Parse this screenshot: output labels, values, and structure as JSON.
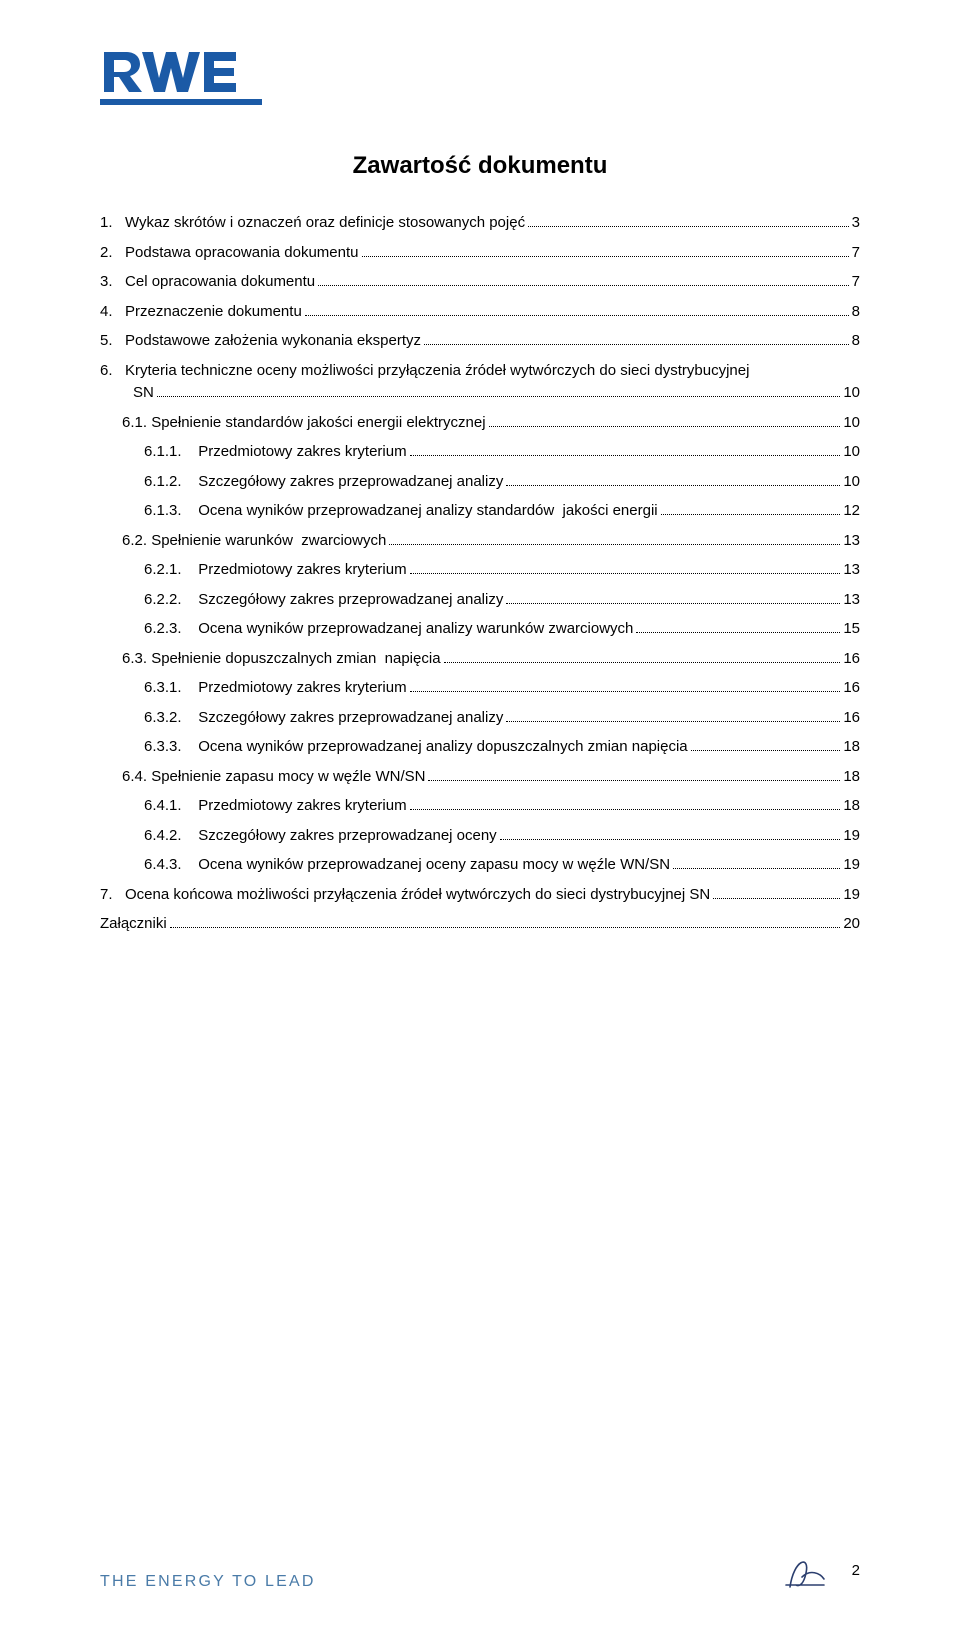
{
  "logo": {
    "brand": "RWE",
    "text_color": "#1b5aa6",
    "underline_color": "#1b5aa6"
  },
  "heading": "Zawartość dokumentu",
  "toc": [
    {
      "indent": 0,
      "num": "1.",
      "label": "Wykaz skrótów i oznaczeń oraz definicje stosowanych pojęć",
      "page": "3"
    },
    {
      "indent": 0,
      "num": "2.",
      "label": "Podstawa opracowania dokumentu",
      "page": "7"
    },
    {
      "indent": 0,
      "num": "3.",
      "label": "Cel opracowania dokumentu",
      "page": "7"
    },
    {
      "indent": 0,
      "num": "4.",
      "label": "Przeznaczenie dokumentu",
      "page": "8"
    },
    {
      "indent": 0,
      "num": "5.",
      "label": "Podstawowe założenia wykonania ekspertyz",
      "page": "8"
    },
    {
      "indent": 0,
      "num": "6.",
      "label": "Kryteria techniczne oceny możliwości przyłączenia źródeł wytwórczych do sieci dystrybucyjnej",
      "label2": "SN",
      "page": "10"
    },
    {
      "indent": 1,
      "num": "6.1.",
      "label": "Spełnienie standardów jakości energii elektrycznej",
      "page": "10"
    },
    {
      "indent": 2,
      "num": "6.1.1.",
      "label": "Przedmiotowy zakres kryterium",
      "page": "10"
    },
    {
      "indent": 2,
      "num": "6.1.2.",
      "label": "Szczegółowy zakres przeprowadzanej analizy",
      "page": "10"
    },
    {
      "indent": 2,
      "num": "6.1.3.",
      "label": "Ocena wyników przeprowadzanej analizy standardów  jakości energii",
      "page": "12"
    },
    {
      "indent": 1,
      "num": "6.2.",
      "label": "Spełnienie warunków  zwarciowych",
      "page": "13"
    },
    {
      "indent": 2,
      "num": "6.2.1.",
      "label": "Przedmiotowy zakres kryterium",
      "page": "13"
    },
    {
      "indent": 2,
      "num": "6.2.2.",
      "label": "Szczegółowy zakres przeprowadzanej analizy",
      "page": "13"
    },
    {
      "indent": 2,
      "num": "6.2.3.",
      "label": "Ocena wyników przeprowadzanej analizy warunków zwarciowych",
      "page": "15"
    },
    {
      "indent": 1,
      "num": "6.3.",
      "label": "Spełnienie dopuszczalnych zmian  napięcia",
      "page": "16"
    },
    {
      "indent": 2,
      "num": "6.3.1.",
      "label": "Przedmiotowy zakres kryterium",
      "page": "16"
    },
    {
      "indent": 2,
      "num": "6.3.2.",
      "label": "Szczegółowy zakres przeprowadzanej analizy",
      "page": "16"
    },
    {
      "indent": 2,
      "num": "6.3.3.",
      "label": "Ocena wyników przeprowadzanej analizy dopuszczalnych zmian napięcia",
      "page": "18"
    },
    {
      "indent": 1,
      "num": "6.4.",
      "label": "Spełnienie zapasu mocy w węźle WN/SN",
      "page": "18"
    },
    {
      "indent": 2,
      "num": "6.4.1.",
      "label": "Przedmiotowy zakres kryterium",
      "page": "18"
    },
    {
      "indent": 2,
      "num": "6.4.2.",
      "label": "Szczegółowy zakres przeprowadzanej oceny",
      "page": "19"
    },
    {
      "indent": 2,
      "num": "6.4.3.",
      "label": "Ocena wyników przeprowadzanej oceny zapasu mocy w węźle WN/SN",
      "page": "19"
    },
    {
      "indent": 0,
      "num": "7.",
      "label": "Ocena końcowa możliwości przyłączenia źródeł wytwórczych do sieci dystrybucyjnej SN",
      "page": "19"
    },
    {
      "indent": 0,
      "num": "",
      "label": "Załączniki",
      "page": "20",
      "flush": true
    }
  ],
  "footer": {
    "left": "THE ENERGY TO LEAD",
    "page_number": "2"
  },
  "colors": {
    "brand": "#1b5aa6",
    "footer_text": "#4a7ba8",
    "body_text": "#000000",
    "background": "#ffffff"
  }
}
